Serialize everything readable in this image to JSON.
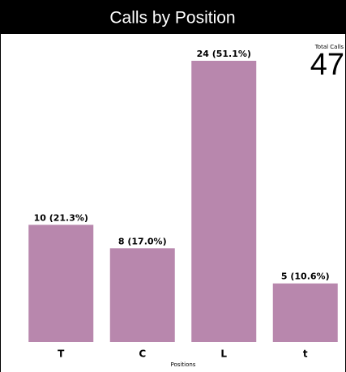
{
  "chart_data": {
    "type": "bar",
    "title": "Calls by Position",
    "categories": [
      "T",
      "C",
      "L",
      "t"
    ],
    "values": [
      10,
      8,
      24,
      5
    ],
    "value_labels": [
      "10 (21.3%)",
      "8 (17.0%)",
      "24 (51.1%)",
      "5 (10.6%)"
    ],
    "color": "#b887ad",
    "x_label": "Positions",
    "total_label": "Total Calls",
    "total": 47
  }
}
